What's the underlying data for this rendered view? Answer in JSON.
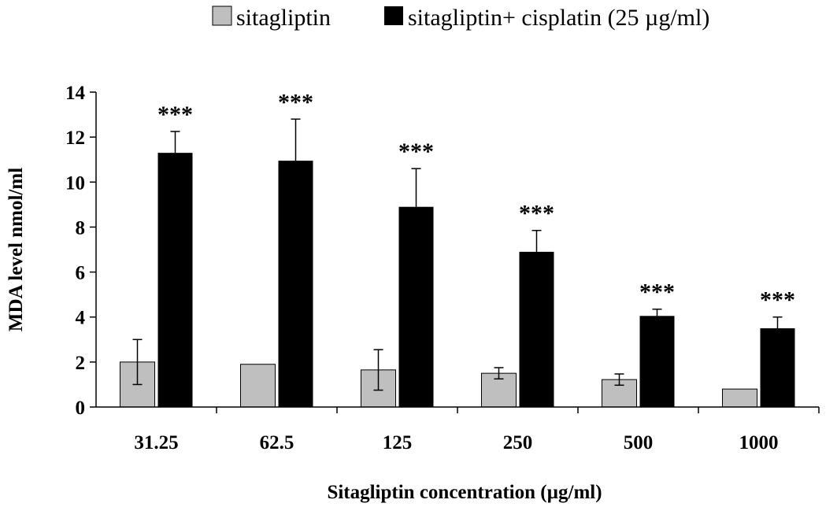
{
  "chart_data": {
    "type": "bar",
    "title": "",
    "xlabel": "Sitagliptin concentration (µg/ml)",
    "ylabel": "MDA level nmol/ml",
    "ylim": [
      0,
      14
    ],
    "yticks": [
      0,
      2,
      4,
      6,
      8,
      10,
      12,
      14
    ],
    "grid": false,
    "legend_position": "top",
    "categories": [
      "31.25",
      "62.5",
      "125",
      "250",
      "500",
      "1000"
    ],
    "series": [
      {
        "name": "sitagliptin",
        "color": "#bfbfbf",
        "values": [
          2.0,
          1.9,
          1.65,
          1.5,
          1.22,
          0.8
        ],
        "errors": [
          1.0,
          0.0,
          0.9,
          0.25,
          0.25,
          0.0
        ]
      },
      {
        "name": "sitagliptin+ cisplatin (25 µg/ml)",
        "color": "#000000",
        "values": [
          11.3,
          10.95,
          8.9,
          6.9,
          4.05,
          3.5
        ],
        "errors": [
          0.95,
          1.85,
          1.7,
          0.95,
          0.3,
          0.5
        ]
      }
    ],
    "annotations": [
      "***",
      "***",
      "***",
      "***",
      "***",
      "***"
    ]
  }
}
